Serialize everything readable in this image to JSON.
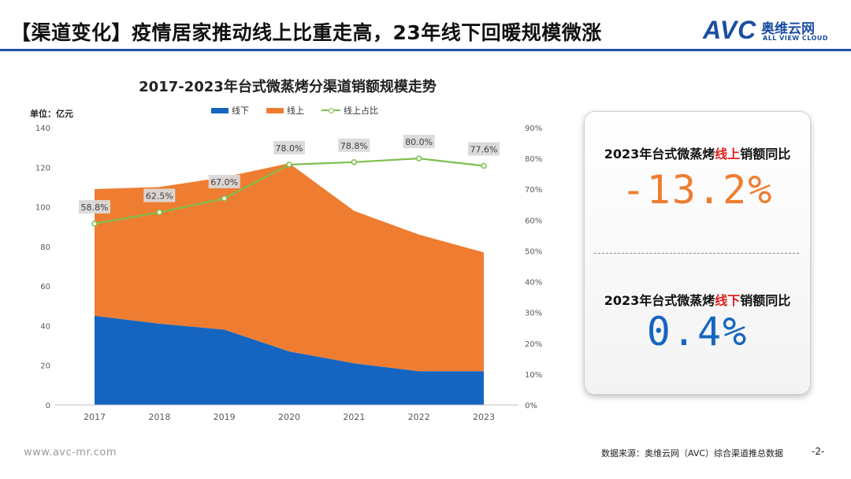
{
  "header": {
    "title": "【渠道变化】疫情居家推动线上比重走高，23年线下回暖规模微涨",
    "logo_text": "AVC",
    "logo_cn": "奥维云网",
    "logo_en": "ALL VIEW CLOUD",
    "rule_color": "#1d4fa0"
  },
  "chart_data": {
    "type": "area",
    "title": "2017-2023年台式微蒸烤分渠道销额规模走势",
    "unit_label": "单位：亿元",
    "categories": [
      "2017",
      "2018",
      "2019",
      "2020",
      "2021",
      "2022",
      "2023"
    ],
    "series": [
      {
        "name": "线下",
        "type": "area",
        "stack": "total",
        "color": "#1565c0",
        "values": [
          45,
          41,
          38,
          27,
          21,
          17,
          17
        ]
      },
      {
        "name": "线上",
        "type": "area",
        "stack": "total",
        "color": "#ef7d31",
        "values": [
          64,
          69,
          77,
          95,
          77,
          69,
          60
        ]
      },
      {
        "name": "线上占比",
        "type": "line",
        "axis": "right",
        "color": "#7dbf4e",
        "values": [
          58.8,
          62.5,
          67.0,
          78.0,
          78.8,
          80.0,
          77.6
        ]
      }
    ],
    "line_labels": [
      "58.8%",
      "62.5%",
      "67.0%",
      "78.0%",
      "78.8%",
      "80.0%",
      "77.6%"
    ],
    "y_left": {
      "min": 0,
      "max": 140,
      "ticks": [
        0,
        20,
        40,
        60,
        80,
        100,
        120,
        140
      ]
    },
    "y_right": {
      "min": 0,
      "max": 90,
      "ticks": [
        "0%",
        "10%",
        "20%",
        "30%",
        "40%",
        "50%",
        "60%",
        "70%",
        "80%",
        "90%"
      ]
    },
    "grid": false,
    "legend_position": "top"
  },
  "kpis": {
    "online": {
      "prefix": "2023年台式微蒸烤",
      "highlight": "线上",
      "suffix": "销额同比",
      "value": "-13.2%"
    },
    "offline": {
      "prefix": "2023年台式微蒸烤",
      "highlight": "线下",
      "suffix": "销额同比",
      "value": "0.4%"
    }
  },
  "footer": {
    "url": "www.avc-mr.com",
    "source": "数据来源：奥维云网（AVC）综合渠道推总数据",
    "page": "-2-"
  }
}
